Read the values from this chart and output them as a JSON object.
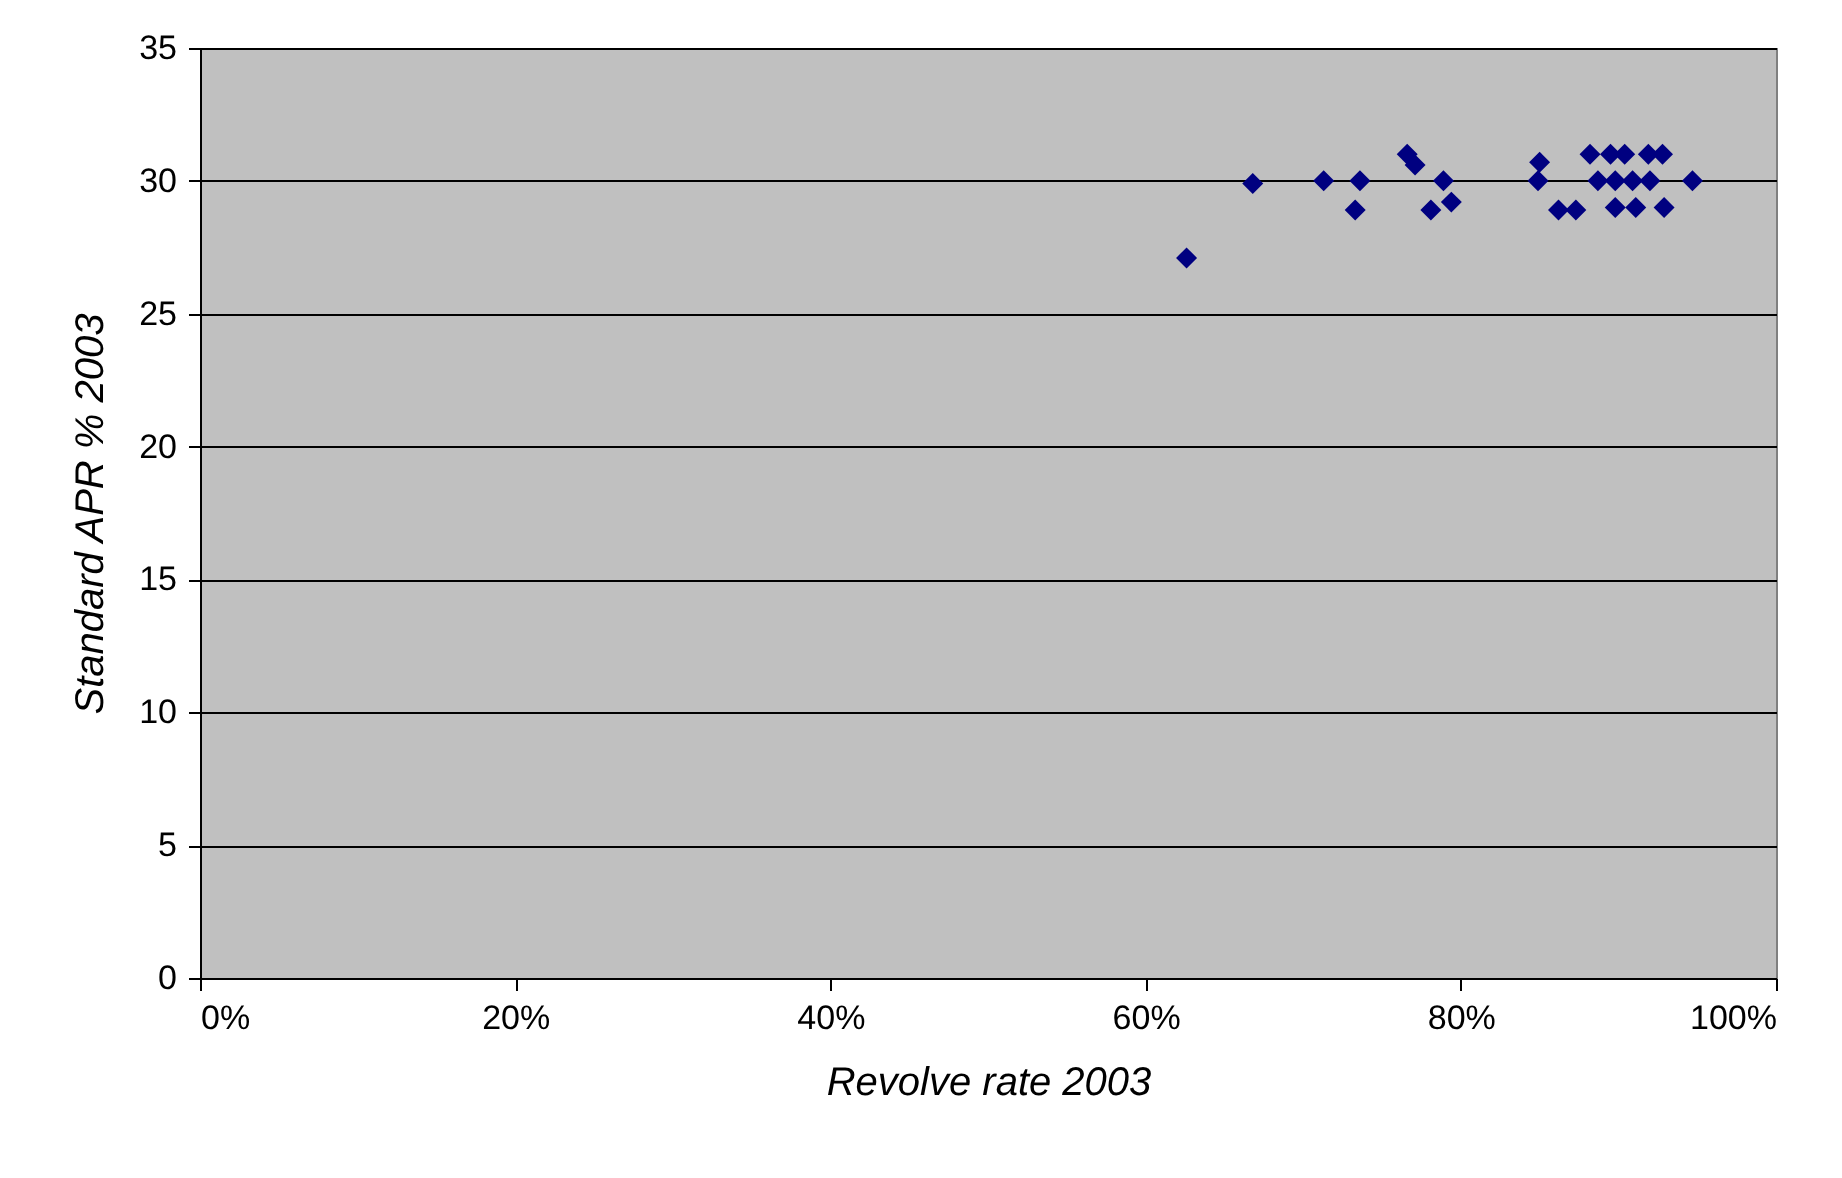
{
  "chart_data": {
    "type": "scatter",
    "xlabel": "Revolve rate 2003",
    "ylabel": "Standard APR % 2003",
    "x": [
      62.6,
      66.8,
      71.3,
      73.6,
      73.3,
      76.6,
      77.1,
      78.9,
      79.4,
      78.1,
      85.0,
      84.9,
      86.2,
      87.3,
      88.2,
      89.5,
      90.4,
      91.9,
      92.8,
      88.7,
      89.8,
      90.9,
      92.0,
      94.7,
      89.8,
      91.1,
      92.9
    ],
    "series": [
      {
        "color": "#000080",
        "values": [
          27.1,
          29.9,
          30,
          30,
          28.9,
          31,
          30.6,
          30,
          29.2,
          28.9,
          30.7,
          30,
          28.9,
          28.9,
          31,
          31,
          31,
          31,
          31,
          30,
          30,
          30,
          30,
          30,
          29,
          29,
          29
        ]
      }
    ],
    "xlim": [
      0,
      100
    ],
    "xticks": [
      {
        "value": 0,
        "label": "0%"
      },
      {
        "value": 20,
        "label": "20%"
      },
      {
        "value": 40,
        "label": "40%"
      },
      {
        "value": 60,
        "label": "60%"
      },
      {
        "value": 80,
        "label": "80%"
      },
      {
        "value": 100,
        "label": "100%"
      }
    ],
    "ylim": [
      0,
      35
    ],
    "yticks": [
      0,
      5,
      10,
      15,
      20,
      25,
      30,
      35
    ],
    "grid": "y",
    "marker": "diamond",
    "legend": false
  }
}
